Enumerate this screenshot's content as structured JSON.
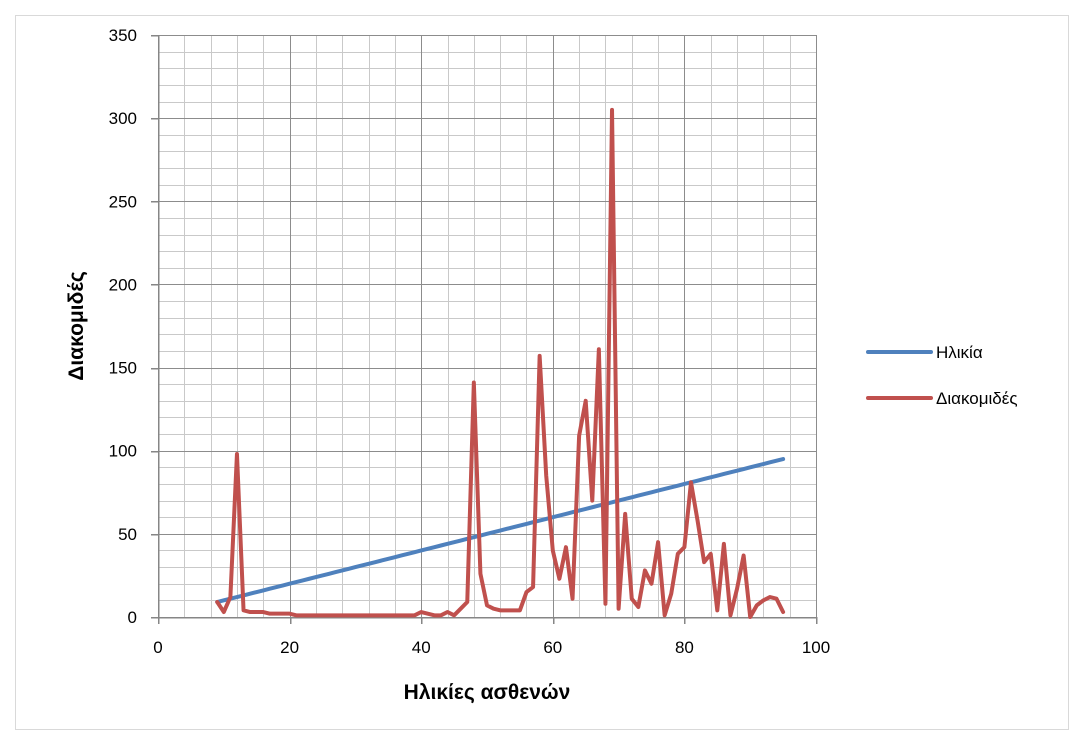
{
  "chart_data": {
    "type": "line",
    "xlabel": "Ηλικίες ασθενών",
    "ylabel": "Διακομιδές",
    "xlim": [
      0,
      100
    ],
    "ylim": [
      0,
      350
    ],
    "x_ticks": [
      0,
      20,
      40,
      60,
      80,
      100
    ],
    "y_ticks": [
      0,
      50,
      100,
      150,
      200,
      250,
      300,
      350
    ],
    "grid": {
      "major": true,
      "minor": true,
      "x_major_step": 20,
      "x_minor_step": 4,
      "y_major_step": 50,
      "y_minor_step": 10
    },
    "legend_position": "right",
    "x": [
      9,
      10,
      11,
      12,
      13,
      14,
      15,
      16,
      17,
      18,
      19,
      20,
      21,
      22,
      23,
      24,
      25,
      26,
      27,
      28,
      29,
      30,
      31,
      32,
      33,
      34,
      35,
      36,
      37,
      38,
      39,
      40,
      41,
      42,
      43,
      44,
      45,
      46,
      47,
      48,
      49,
      50,
      51,
      52,
      53,
      54,
      55,
      56,
      57,
      58,
      59,
      60,
      61,
      62,
      63,
      64,
      65,
      66,
      67,
      68,
      69,
      70,
      71,
      72,
      73,
      74,
      75,
      76,
      77,
      78,
      79,
      80,
      81,
      82,
      83,
      84,
      85,
      86,
      87,
      88,
      89,
      90,
      91,
      92,
      93,
      94,
      95
    ],
    "series": [
      {
        "name": "Ηλικία",
        "color": "#4F81BD",
        "values": [
          9,
          10,
          11,
          12,
          13,
          14,
          15,
          16,
          17,
          18,
          19,
          20,
          21,
          22,
          23,
          24,
          25,
          26,
          27,
          28,
          29,
          30,
          31,
          32,
          33,
          34,
          35,
          36,
          37,
          38,
          39,
          40,
          41,
          42,
          43,
          44,
          45,
          46,
          47,
          48,
          49,
          50,
          51,
          52,
          53,
          54,
          55,
          56,
          57,
          58,
          59,
          60,
          61,
          62,
          63,
          64,
          65,
          66,
          67,
          68,
          69,
          70,
          71,
          72,
          73,
          74,
          75,
          76,
          77,
          78,
          79,
          80,
          81,
          82,
          83,
          84,
          85,
          86,
          87,
          88,
          89,
          90,
          91,
          92,
          93,
          94,
          95
        ]
      },
      {
        "name": "Διακομιδές",
        "color": "#C0504D",
        "values": [
          9,
          3,
          12,
          98,
          4,
          3,
          3,
          3,
          2,
          2,
          2,
          2,
          1,
          1,
          1,
          1,
          1,
          1,
          1,
          1,
          1,
          1,
          1,
          1,
          1,
          1,
          1,
          1,
          1,
          1,
          1,
          3,
          2,
          1,
          1,
          3,
          1,
          5,
          9,
          141,
          26,
          7,
          5,
          4,
          4,
          4,
          4,
          15,
          18,
          157,
          85,
          40,
          23,
          42,
          11,
          109,
          130,
          70,
          161,
          8,
          305,
          5,
          62,
          11,
          6,
          28,
          20,
          45,
          1,
          14,
          38,
          42,
          81,
          58,
          33,
          38,
          4,
          44,
          1,
          17,
          37,
          0,
          7,
          10,
          12,
          11,
          3
        ]
      }
    ]
  }
}
